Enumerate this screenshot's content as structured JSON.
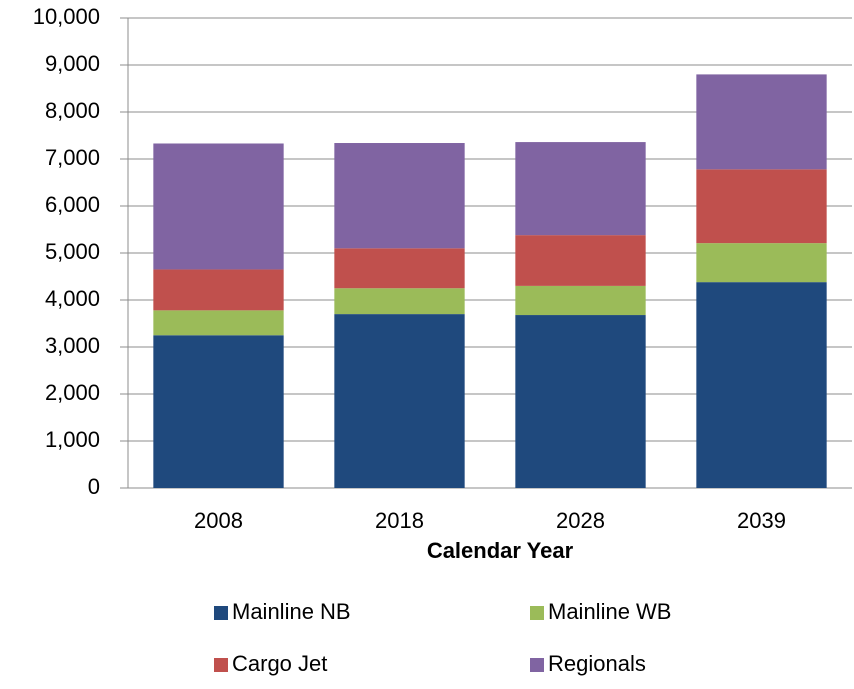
{
  "chart_data": {
    "type": "stacked_bar",
    "xlabel": "Calendar Year",
    "categories": [
      "2008",
      "2018",
      "2028",
      "2039"
    ],
    "series": [
      {
        "name": "Mainline NB",
        "color": "#1f497d",
        "values": [
          3250,
          3700,
          3680,
          4380
        ]
      },
      {
        "name": "Mainline WB",
        "color": "#9bbb59",
        "values": [
          530,
          550,
          620,
          830
        ]
      },
      {
        "name": "Cargo Jet",
        "color": "#c0504d",
        "values": [
          870,
          850,
          1080,
          1570
        ]
      },
      {
        "name": "Regionals",
        "color": "#8064a2",
        "values": [
          2680,
          2240,
          1980,
          2020
        ]
      }
    ],
    "ylim": [
      0,
      10000
    ],
    "yticks": [
      0,
      {
        "value": 1000,
        "label": "1,000"
      },
      {
        "value": 2000,
        "label": "2,000"
      },
      {
        "value": 3000,
        "label": "3,000"
      },
      {
        "value": 4000,
        "label": "4,000"
      },
      {
        "value": 5000,
        "label": "5,000"
      },
      {
        "value": 6000,
        "label": "6,000"
      },
      {
        "value": 7000,
        "label": "7,000"
      },
      {
        "value": 8000,
        "label": "8,000"
      },
      {
        "value": 9000,
        "label": "9,000"
      },
      {
        "value": 10000,
        "label": "10,000"
      }
    ],
    "grid": true,
    "legend": "bottom"
  }
}
